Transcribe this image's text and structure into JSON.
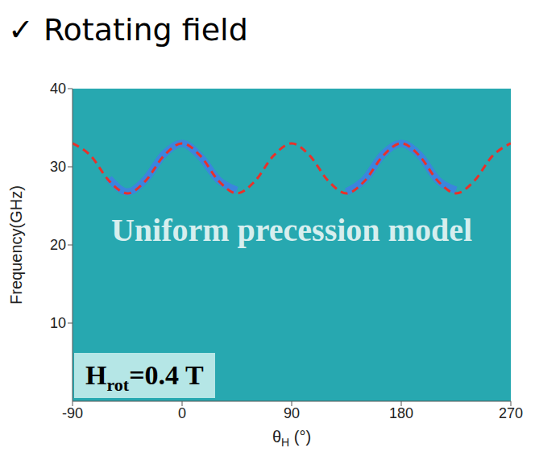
{
  "chart_data": {
    "type": "line",
    "title": "✓ Rotating field",
    "ylabel": "Frequency(GHz)",
    "xlabel": {
      "text": "θ",
      "subscript": "H",
      "suffix": " (°)"
    },
    "x": [
      -90,
      -75,
      -60,
      -45,
      -30,
      -15,
      0,
      15,
      30,
      45,
      60,
      75,
      90,
      105,
      120,
      135,
      150,
      165,
      180,
      195,
      210,
      225,
      240,
      255,
      270
    ],
    "series": [
      {
        "color": "#3f7fe6",
        "line_style": "solid",
        "values": [
          null,
          null,
          28.5,
          26.8,
          28.4,
          31.6,
          33,
          31.3,
          28.3,
          27,
          null,
          null,
          null,
          null,
          null,
          26.8,
          28.4,
          31.6,
          33,
          31.5,
          28.3,
          27,
          null,
          null,
          null
        ]
      },
      {
        "color": "#e8312a",
        "line_style": "dashed",
        "values": [
          33,
          31.4,
          28.2,
          26.6,
          28.2,
          31.4,
          33,
          31.4,
          28.2,
          26.6,
          28.2,
          31.4,
          33,
          31.4,
          28.2,
          26.6,
          28.2,
          31.4,
          33,
          31.4,
          28.2,
          26.6,
          28.2,
          31.4,
          33
        ]
      }
    ],
    "xlim": [
      -90,
      270
    ],
    "xticks": [
      -90,
      0,
      90,
      180,
      270
    ],
    "ylim": [
      0,
      40
    ],
    "yticks": [
      10,
      20,
      30,
      40
    ],
    "annotations": [
      {
        "text": "Uniform precession model",
        "color": "#d6eeee"
      },
      {
        "text": "H",
        "subscript": "rot",
        "suffix": "=0.4 T",
        "color": "#000000"
      }
    ]
  }
}
